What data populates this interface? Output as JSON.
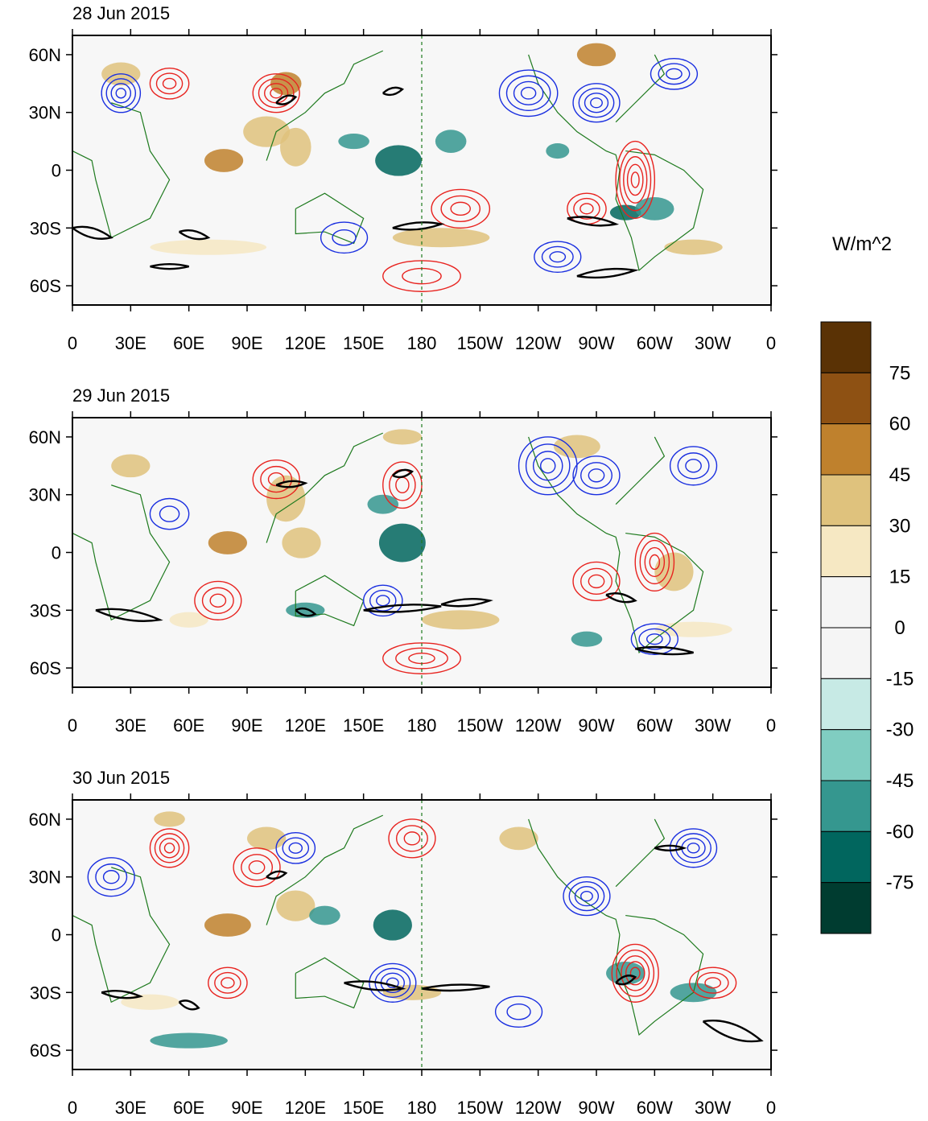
{
  "colors": {
    "positive_contour": "#e8231f",
    "negative_contour": "#1a2fe0",
    "coastline": "#1e7a1e",
    "jet_contour": "#000000",
    "frame": "#000000"
  },
  "chart_data": {
    "type": "heatmap",
    "legend": {
      "units": "W/m^2",
      "levels": [
        "75",
        "60",
        "45",
        "30",
        "15",
        "0",
        "-15",
        "-30",
        "-45",
        "-60",
        "-75"
      ],
      "colors": [
        "#5a3205",
        "#8e5113",
        "#bf812d",
        "#dfc27d",
        "#f6e8c3",
        "#f5f5f5",
        "#f5f5f5",
        "#c7eae5",
        "#80cdc1",
        "#35978f",
        "#01665e",
        "#003c30"
      ]
    },
    "lon_ticks": [
      "0",
      "30E",
      "60E",
      "90E",
      "120E",
      "150E",
      "180",
      "150W",
      "120W",
      "90W",
      "60W",
      "30W",
      "0"
    ],
    "lat_ticks": [
      "60N",
      "30N",
      "0",
      "30S",
      "60S"
    ],
    "lat_range": [
      -70,
      70
    ],
    "lon_range": [
      0,
      360
    ],
    "panels": [
      {
        "title": "28 Jun 2015"
      },
      {
        "title": "29 Jun 2015"
      },
      {
        "title": "30 Jun 2015"
      }
    ]
  }
}
